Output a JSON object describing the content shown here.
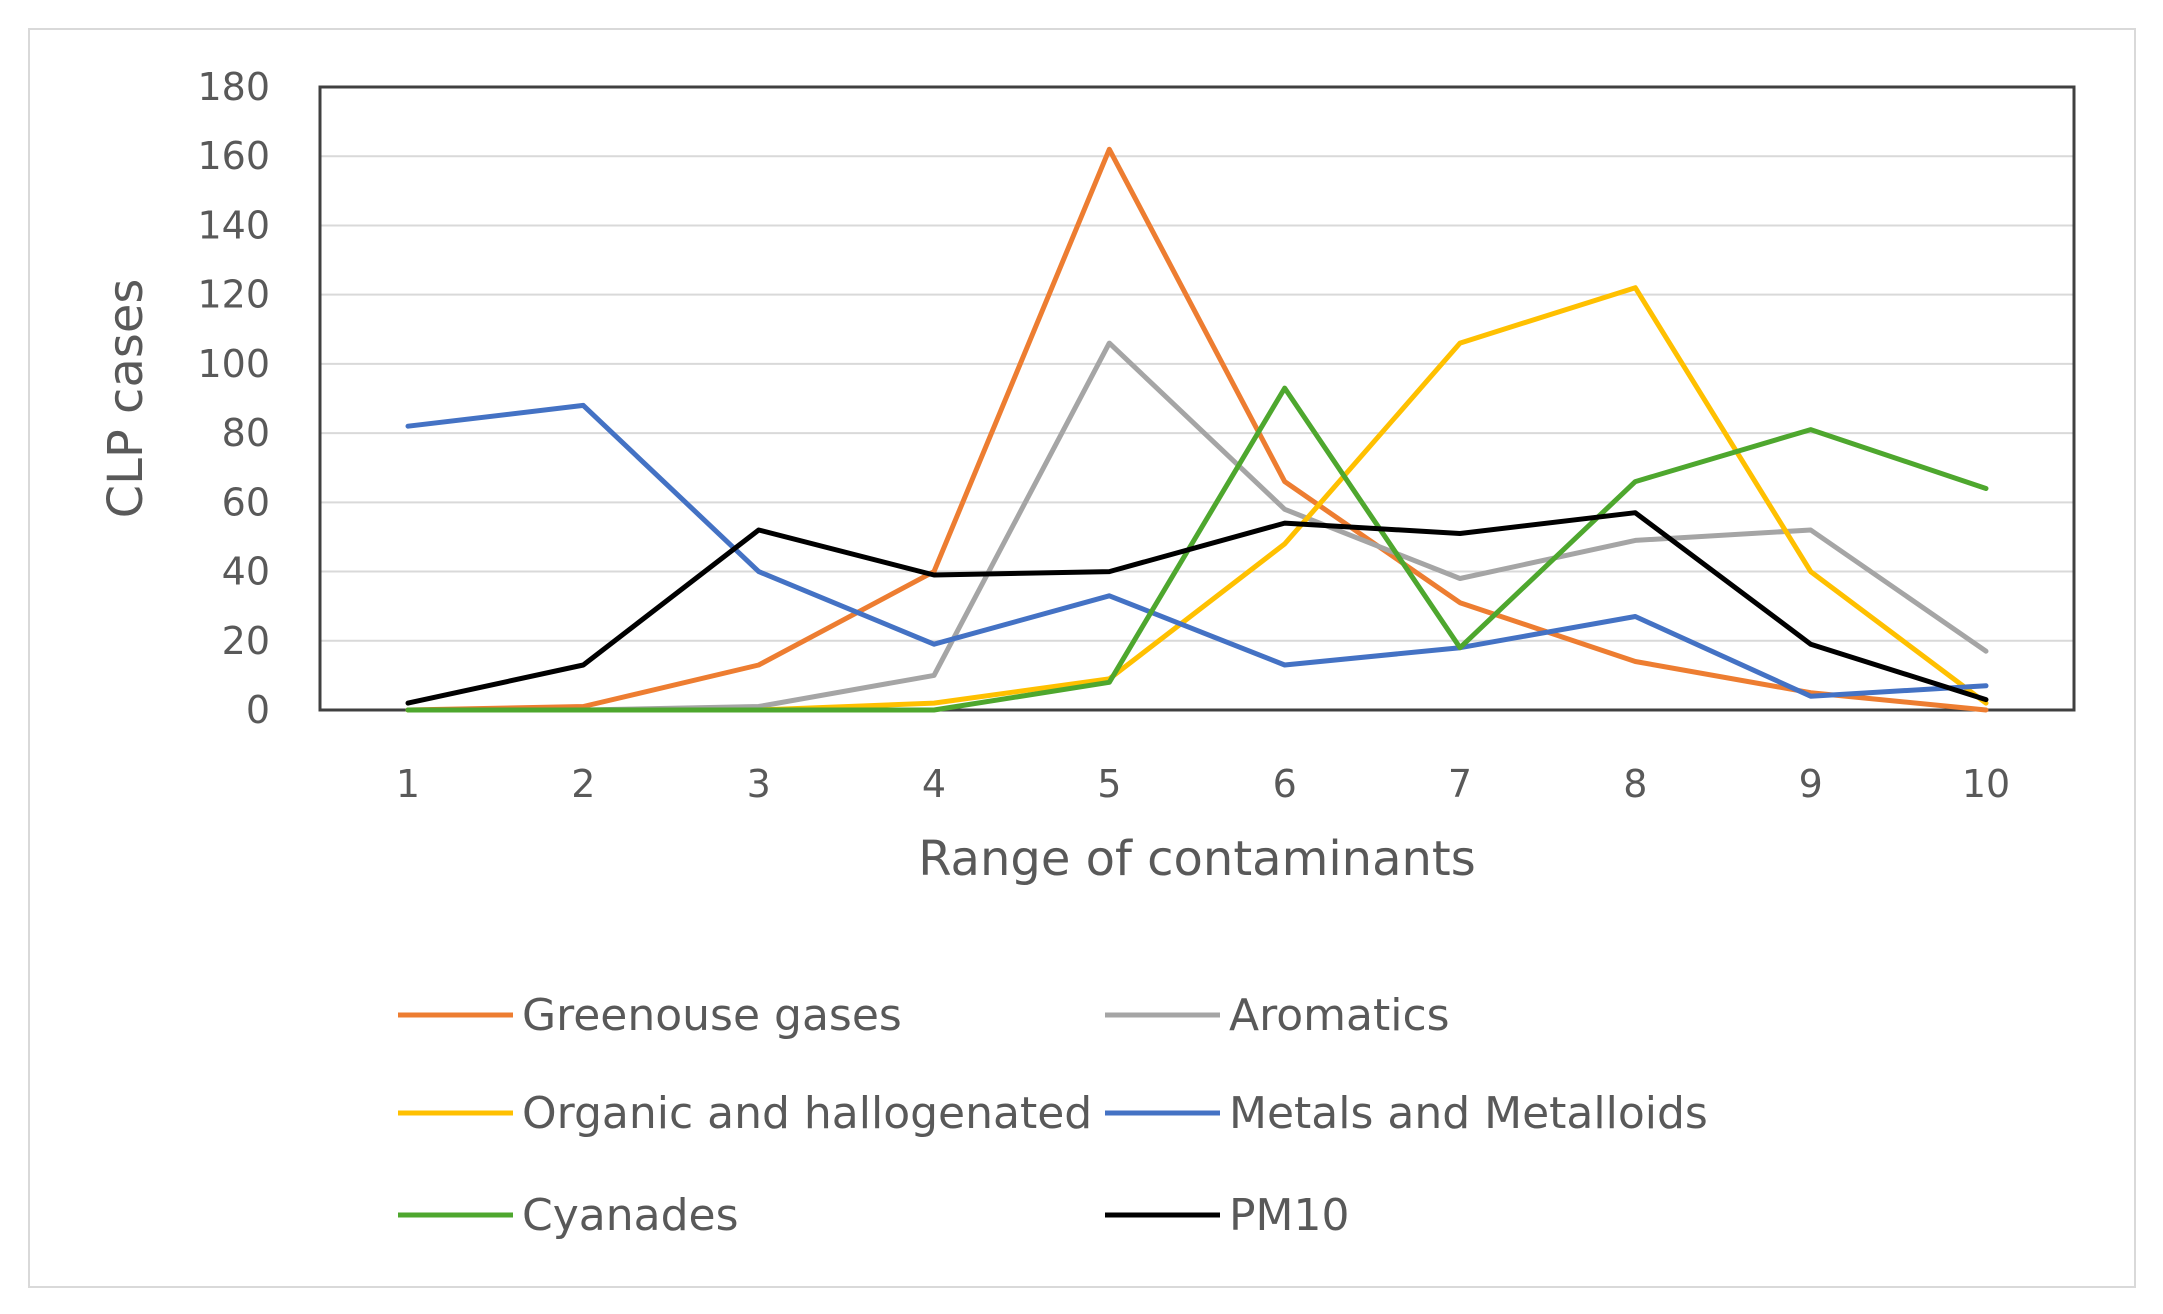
{
  "chart_data": {
    "type": "line",
    "title": "",
    "xlabel": "Range of contaminants",
    "ylabel": "CLP cases",
    "categories": [
      "1",
      "2",
      "3",
      "4",
      "5",
      "6",
      "7",
      "8",
      "9",
      "10"
    ],
    "ylim": [
      0,
      180
    ],
    "yticks": [
      0,
      20,
      40,
      60,
      80,
      100,
      120,
      140,
      160,
      180
    ],
    "grid": true,
    "legend_position": "bottom",
    "series": [
      {
        "name": "Greenouse gases",
        "color": "#ed7d31",
        "values": [
          0,
          1,
          13,
          40,
          162,
          66,
          31,
          14,
          5,
          0
        ]
      },
      {
        "name": "Aromatics",
        "color": "#a5a5a5",
        "values": [
          0,
          0,
          1,
          10,
          106,
          58,
          38,
          49,
          52,
          17
        ]
      },
      {
        "name": "Organic and hallogenated",
        "color": "#ffc000",
        "values": [
          0,
          0,
          0,
          2,
          9,
          48,
          106,
          122,
          40,
          2
        ]
      },
      {
        "name": "Metals and Metalloids",
        "color": "#4472c4",
        "values": [
          82,
          88,
          40,
          19,
          33,
          13,
          18,
          27,
          4,
          7
        ]
      },
      {
        "name": "Cyanades",
        "color": "#4ea72e",
        "values": [
          0,
          0,
          0,
          0,
          8,
          93,
          18,
          66,
          81,
          64
        ]
      },
      {
        "name": "PM10",
        "color": "#000000",
        "values": [
          2,
          13,
          52,
          39,
          40,
          54,
          51,
          57,
          19,
          3
        ]
      }
    ]
  }
}
